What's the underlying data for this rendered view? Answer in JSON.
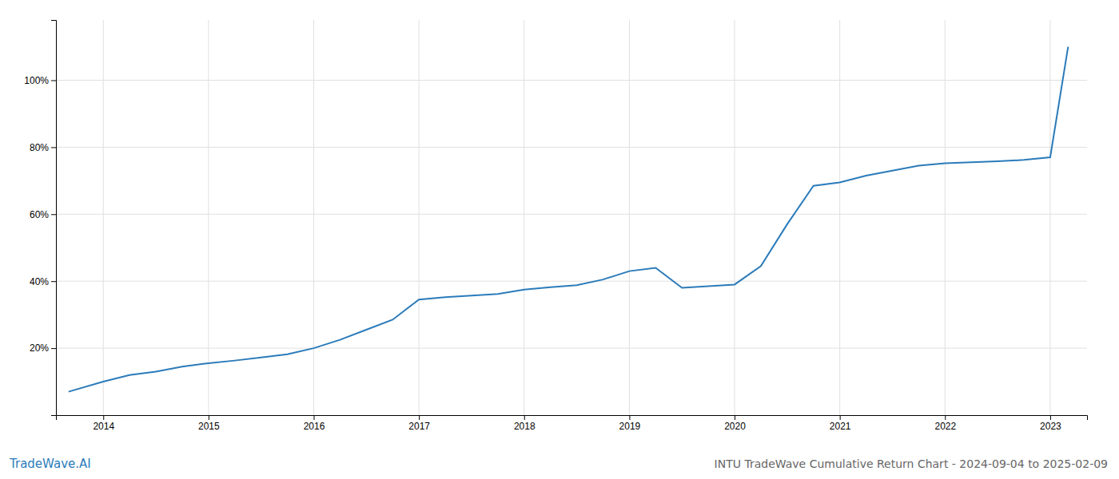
{
  "chart_data": {
    "type": "line",
    "title": "INTU TradeWave Cumulative Return Chart - 2024-09-04 to 2025-02-09",
    "annotations": [
      "TradeWave.AI"
    ],
    "color": "#2b7bba",
    "x": [
      2013.67,
      2014.0,
      2014.25,
      2014.5,
      2014.75,
      2015.0,
      2015.25,
      2015.5,
      2015.75,
      2016.0,
      2016.25,
      2016.5,
      2016.75,
      2017.0,
      2017.25,
      2017.5,
      2017.75,
      2018.0,
      2018.25,
      2018.5,
      2018.75,
      2019.0,
      2019.25,
      2019.5,
      2019.75,
      2020.0,
      2020.25,
      2020.5,
      2020.75,
      2021.0,
      2021.25,
      2021.5,
      2021.75,
      2022.0,
      2022.25,
      2022.5,
      2022.75,
      2023.0,
      2023.17
    ],
    "values": [
      0.07,
      0.1,
      0.12,
      0.13,
      0.145,
      0.155,
      0.163,
      0.172,
      0.182,
      0.2,
      0.225,
      0.255,
      0.285,
      0.345,
      0.352,
      0.357,
      0.362,
      0.375,
      0.382,
      0.388,
      0.405,
      0.43,
      0.44,
      0.38,
      0.385,
      0.39,
      0.445,
      0.57,
      0.685,
      0.695,
      0.715,
      0.73,
      0.745,
      0.752,
      0.755,
      0.758,
      0.762,
      0.77,
      1.1
    ],
    "xlim": [
      2013.55,
      2023.35
    ],
    "ylim": [
      0.0,
      1.18
    ],
    "xticks": [
      2014,
      2015,
      2016,
      2017,
      2018,
      2019,
      2020,
      2021,
      2022,
      2023
    ],
    "yticks": [
      {
        "value": 0.2,
        "label": "20%"
      },
      {
        "value": 0.4,
        "label": "40%"
      },
      {
        "value": 0.6,
        "label": "60%"
      },
      {
        "value": 0.8,
        "label": "80%"
      },
      {
        "value": 1.0,
        "label": "100%"
      }
    ],
    "grid": true
  }
}
